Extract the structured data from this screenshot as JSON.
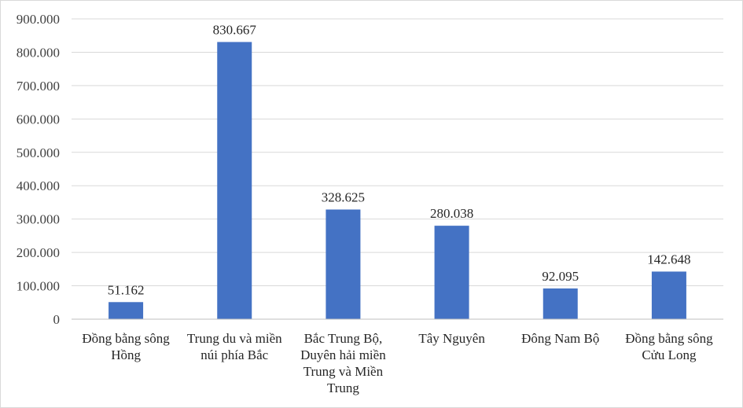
{
  "chart_data": {
    "type": "bar",
    "categories": [
      [
        "Đồng bằng sông",
        "Hồng"
      ],
      [
        "Trung du và miền",
        "núi phía Bắc"
      ],
      [
        "Bắc Trung Bộ,",
        "Duyên hải miền",
        "Trung và Miền",
        "Trung"
      ],
      [
        "Tây Nguyên"
      ],
      [
        "Đông Nam Bộ"
      ],
      [
        "Đồng bằng sông",
        "Cửu Long"
      ]
    ],
    "values": [
      51162,
      830667,
      328625,
      280038,
      92095,
      142648
    ],
    "value_labels": [
      "51.162",
      "830.667",
      "328.625",
      "280.038",
      "92.095",
      "142.648"
    ],
    "yticks": [
      0,
      100000,
      200000,
      300000,
      400000,
      500000,
      600000,
      700000,
      800000,
      900000
    ],
    "ytick_labels": [
      "0",
      "100.000",
      "200.000",
      "300.000",
      "400.000",
      "500.000",
      "600.000",
      "700.000",
      "800.000",
      "900.000"
    ],
    "ylim": [
      0,
      900000
    ],
    "grid": true,
    "legend": "none",
    "colors": {
      "bar": "#4472c4",
      "grid": "#d9d9d9",
      "axis": "#bfbfbf"
    }
  }
}
